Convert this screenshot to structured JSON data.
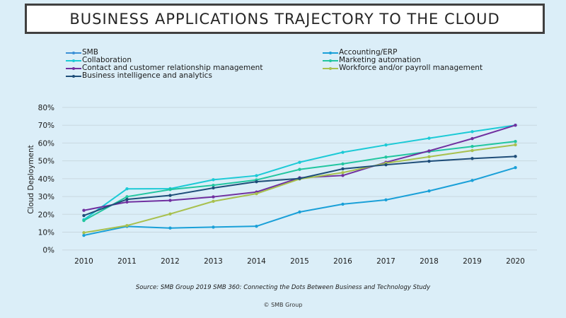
{
  "title": "BUSINESS APPLICATIONS TRAJECTORY TO THE CLOUD",
  "source": "Source: SMB Group 2019 SMB 360: Connecting the Dots Between Business and Technology Study",
  "copyright": "© SMB Group",
  "chart_data": {
    "type": "line",
    "title": "BUSINESS APPLICATIONS TRAJECTORY TO THE CLOUD",
    "xlabel": "",
    "ylabel": "Cloud Deployment",
    "ylim": [
      0,
      80
    ],
    "yticks": [
      "0%",
      "10%",
      "20%",
      "30%",
      "40%",
      "50%",
      "60%",
      "70%",
      "80%"
    ],
    "grid": true,
    "legend_position": "top",
    "categories": [
      "2010",
      "2011",
      "2012",
      "2013",
      "2014",
      "2015",
      "2016",
      "2017",
      "2018",
      "2019",
      "2020"
    ],
    "series": [
      {
        "name": "SMB",
        "color": "#3b8fd6",
        "values": []
      },
      {
        "name": "Accounting/ERP",
        "color": "#1aa0d8",
        "values": [
          8.2,
          13.2,
          12.3,
          12.8,
          13.3,
          21.3,
          25.7,
          28.1,
          33.1,
          39.0,
          46.2
        ]
      },
      {
        "name": "Collaboration",
        "color": "#1ccad6",
        "values": [
          17.0,
          34.3,
          34.4,
          39.4,
          41.7,
          49.2,
          54.8,
          58.9,
          62.7,
          66.4,
          70.0
        ]
      },
      {
        "name": "Marketing automation",
        "color": "#22c6a0",
        "values": [
          16.5,
          29.9,
          33.9,
          36.3,
          39.3,
          45.2,
          48.3,
          52.1,
          55.2,
          58.1,
          60.9
        ]
      },
      {
        "name": "Contact and customer relationship management",
        "color": "#7030a0",
        "values": [
          22.2,
          26.9,
          27.8,
          29.8,
          32.5,
          40.5,
          41.8,
          49.2,
          55.6,
          62.5,
          70.0
        ]
      },
      {
        "name": "Workforce and/or payroll management",
        "color": "#a8c04e",
        "values": [
          9.7,
          13.7,
          20.2,
          27.3,
          31.6,
          39.8,
          43.4,
          48.7,
          52.3,
          55.8,
          59.0
        ]
      },
      {
        "name": "Business intelligence and analytics",
        "color": "#1f4e79",
        "values": [
          19.3,
          28.4,
          30.6,
          34.8,
          38.3,
          40.1,
          45.5,
          47.8,
          49.8,
          51.3,
          52.5
        ]
      }
    ]
  },
  "legend": {
    "col1": [
      {
        "label": "SMB",
        "color": "#3b8fd6"
      },
      {
        "label": "Collaboration",
        "color": "#1ccad6"
      },
      {
        "label": "Contact and customer relationship management",
        "color": "#7030a0"
      },
      {
        "label": "Business intelligence and analytics",
        "color": "#1f4e79"
      }
    ],
    "col2": [
      {
        "label": "Accounting/ERP",
        "color": "#1aa0d8"
      },
      {
        "label": "Marketing automation",
        "color": "#22c6a0"
      },
      {
        "label": "Workforce and/or payroll management",
        "color": "#a8c04e"
      }
    ]
  }
}
